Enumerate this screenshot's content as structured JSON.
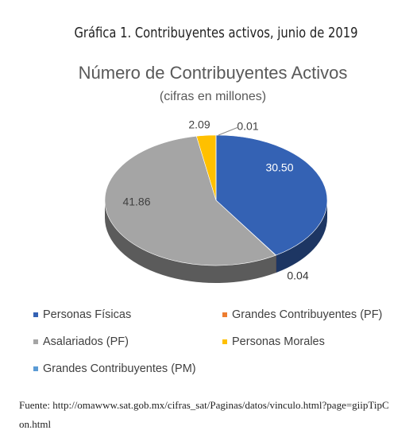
{
  "caption": "Gráfica 1. Contribuyentes activos, junio de 2019",
  "chart_data": {
    "type": "pie",
    "title": "Número de Contribuyentes Activos",
    "subtitle": "(cifras en millones)",
    "categories": [
      "Personas Físicas",
      "Grandes Contribuyentes (PF)",
      "Asalariados (PF)",
      "Personas Morales",
      "Grandes Contribuyentes (PM)"
    ],
    "values": [
      30.5,
      0.04,
      41.86,
      2.09,
      0.01
    ],
    "value_labels": [
      "30.50",
      "0.04",
      "41.86",
      "2.09",
      "0.01"
    ],
    "colors": [
      "#3462b4",
      "#ed7d31",
      "#a5a5a5",
      "#ffc000",
      "#5b9bd5"
    ]
  },
  "source": "Fuente: http://omawww.sat.gob.mx/cifras_sat/Paginas/datos/vinculo.html?page=giipTipCon.html"
}
